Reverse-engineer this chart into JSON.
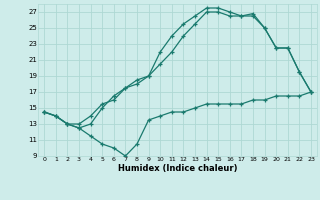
{
  "xlabel": "Humidex (Indice chaleur)",
  "background_color": "#ceecea",
  "grid_color": "#aed8d4",
  "line_color": "#1a7a6e",
  "xlim": [
    -0.5,
    23.5
  ],
  "ylim": [
    9,
    28
  ],
  "xticks": [
    0,
    1,
    2,
    3,
    4,
    5,
    6,
    7,
    8,
    9,
    10,
    11,
    12,
    13,
    14,
    15,
    16,
    17,
    18,
    19,
    20,
    21,
    22,
    23
  ],
  "yticks": [
    9,
    11,
    13,
    15,
    17,
    19,
    21,
    23,
    25,
    27
  ],
  "line1_x": [
    0,
    1,
    2,
    3,
    4,
    5,
    6,
    7,
    8,
    9,
    10,
    11,
    12,
    13,
    14,
    15,
    16,
    17,
    18,
    19,
    20,
    21,
    22,
    23
  ],
  "line1_y": [
    14.5,
    14.0,
    13.0,
    12.5,
    11.5,
    10.5,
    10.0,
    9.0,
    10.5,
    13.5,
    14.0,
    14.5,
    14.5,
    15.0,
    15.5,
    15.5,
    15.5,
    15.5,
    16.0,
    16.0,
    16.5,
    16.5,
    16.5,
    17.0
  ],
  "line2_x": [
    0,
    1,
    2,
    3,
    4,
    5,
    6,
    7,
    8,
    9,
    10,
    11,
    12,
    13,
    14,
    15,
    16,
    17,
    18,
    19,
    20,
    21,
    22,
    23
  ],
  "line2_y": [
    14.5,
    14.0,
    13.0,
    13.0,
    14.0,
    15.5,
    16.0,
    17.5,
    18.0,
    19.0,
    20.5,
    22.0,
    24.0,
    25.5,
    27.0,
    27.0,
    26.5,
    26.5,
    26.5,
    25.0,
    22.5,
    22.5,
    19.5,
    17.0
  ],
  "line3_x": [
    0,
    1,
    2,
    3,
    4,
    5,
    6,
    7,
    8,
    9,
    10,
    11,
    12,
    13,
    14,
    15,
    16,
    17,
    18,
    19,
    20,
    21,
    22,
    23
  ],
  "line3_y": [
    14.5,
    14.0,
    13.0,
    12.5,
    13.0,
    15.0,
    16.5,
    17.5,
    18.5,
    19.0,
    22.0,
    24.0,
    25.5,
    26.5,
    27.5,
    27.5,
    27.0,
    26.5,
    26.8,
    25.0,
    22.5,
    22.5,
    19.5,
    17.0
  ]
}
